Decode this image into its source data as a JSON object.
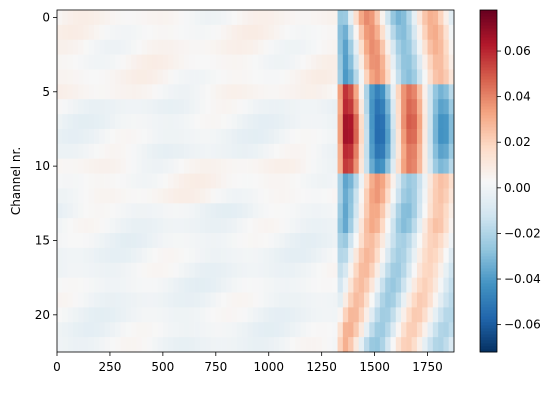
{
  "chart_data": {
    "type": "heatmap",
    "title": "",
    "xlabel": "",
    "ylabel": "Channel nr.",
    "x_range": [
      0,
      1875
    ],
    "y_range": [
      -0.5,
      22.5
    ],
    "y_inverted": true,
    "n_channels": 23,
    "x_ticks": [
      0,
      250,
      500,
      750,
      1000,
      1250,
      1500,
      1750
    ],
    "x_tick_labels": [
      "0",
      "250",
      "500",
      "750",
      "1000",
      "1250",
      "1500",
      "1750"
    ],
    "y_ticks": [
      0,
      5,
      10,
      15,
      20
    ],
    "y_tick_labels": [
      "0",
      "5",
      "10",
      "15",
      "20"
    ],
    "colormap": "RdBu_r",
    "colorbar": {
      "vmin": -0.072,
      "vmax": 0.078,
      "ticks": [
        -0.06,
        -0.04,
        -0.02,
        0.0,
        0.02,
        0.04,
        0.06
      ],
      "tick_labels": [
        "−0.06",
        "−0.04",
        "−0.02",
        "0.00",
        "0.02",
        "0.04",
        "0.06"
      ]
    },
    "features": {
      "baseline_end_sample": 1320,
      "baseline_noise_level": 0.005,
      "regions": [
        {
          "channels": [
            0,
            4
          ],
          "description": "blue then red bands",
          "approx_peak": 0.04
        },
        {
          "channels": [
            5,
            10
          ],
          "description": "strong red around sample 1380 and 1640",
          "approx_peak": 0.078
        },
        {
          "channels": [
            11,
            14
          ],
          "description": "alternating blue and red",
          "approx_peak": 0.04
        },
        {
          "channels": [
            15,
            22
          ],
          "description": "blue around 1340 and 1600, red around 1480 and 1750",
          "approx_peak": 0.035
        }
      ]
    }
  }
}
